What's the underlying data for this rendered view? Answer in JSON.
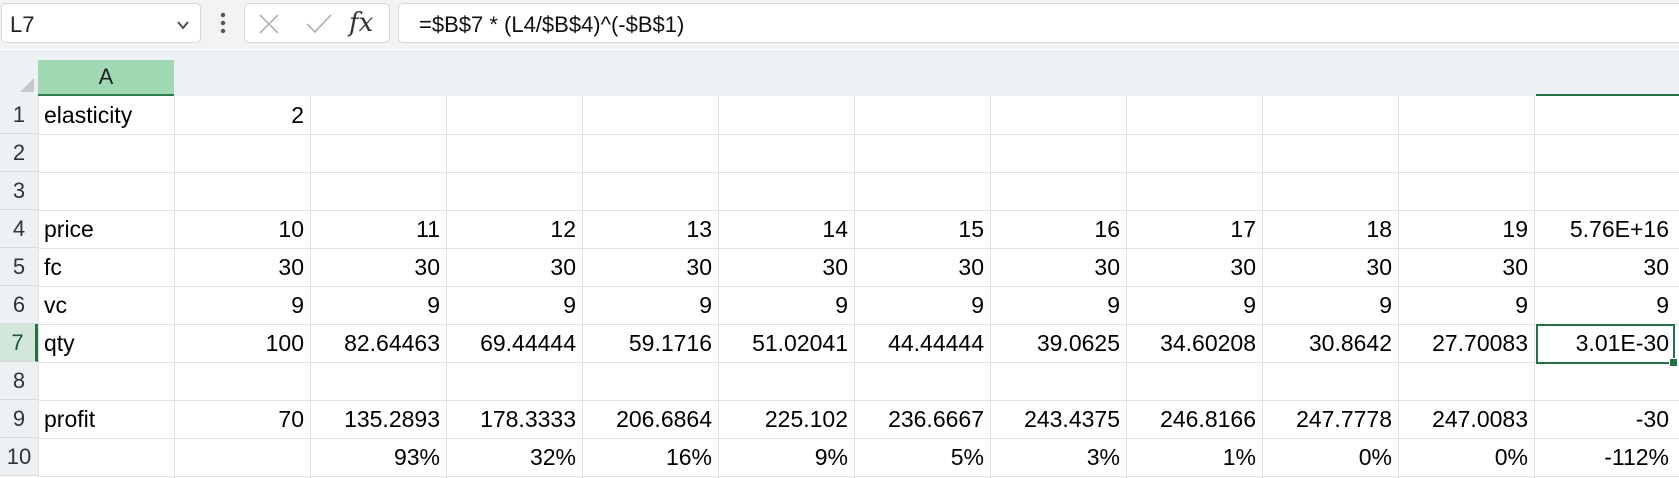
{
  "name_box": {
    "value": "L7"
  },
  "formula_bar": {
    "formula": "=$B$7 * (L4/$B$4)^(-$B$1)",
    "fx_label": "fx"
  },
  "column_headers": [
    "A"
  ],
  "row_numbers": [
    "1",
    "2",
    "3",
    "4",
    "5",
    "6",
    "7",
    "8",
    "9",
    "10"
  ],
  "cells": {
    "row1": [
      "elasticity",
      "2"
    ],
    "row4": [
      "price",
      "10",
      "11",
      "12",
      "13",
      "14",
      "15",
      "16",
      "17",
      "18",
      "19",
      "5.76E+16"
    ],
    "row5": [
      "fc",
      "30",
      "30",
      "30",
      "30",
      "30",
      "30",
      "30",
      "30",
      "30",
      "30",
      "30"
    ],
    "row6": [
      "vc",
      "9",
      "9",
      "9",
      "9",
      "9",
      "9",
      "9",
      "9",
      "9",
      "9",
      "9"
    ],
    "row7": [
      "qty",
      "100",
      "82.64463",
      "69.44444",
      "59.1716",
      "51.02041",
      "44.44444",
      "39.0625",
      "34.60208",
      "30.8642",
      "27.70083",
      "3.01E-30"
    ],
    "row9": [
      "profit",
      "70",
      "135.2893",
      "178.3333",
      "206.6864",
      "225.102",
      "236.6667",
      "243.4375",
      "246.8166",
      "247.7778",
      "247.0083",
      "-30"
    ],
    "row10": [
      "",
      "",
      "93%",
      "32%",
      "16%",
      "9%",
      "5%",
      "3%",
      "1%",
      "0%",
      "0%",
      "-112%"
    ]
  },
  "colors": {
    "selection_green": "#217346",
    "header_bg": "#eef1f4",
    "selected_col_bg": "#a0d8b4"
  },
  "icons": [
    "chevron-down-icon",
    "more-vertical-icon",
    "cancel-icon",
    "enter-icon",
    "fx-icon",
    "select-all-icon"
  ]
}
